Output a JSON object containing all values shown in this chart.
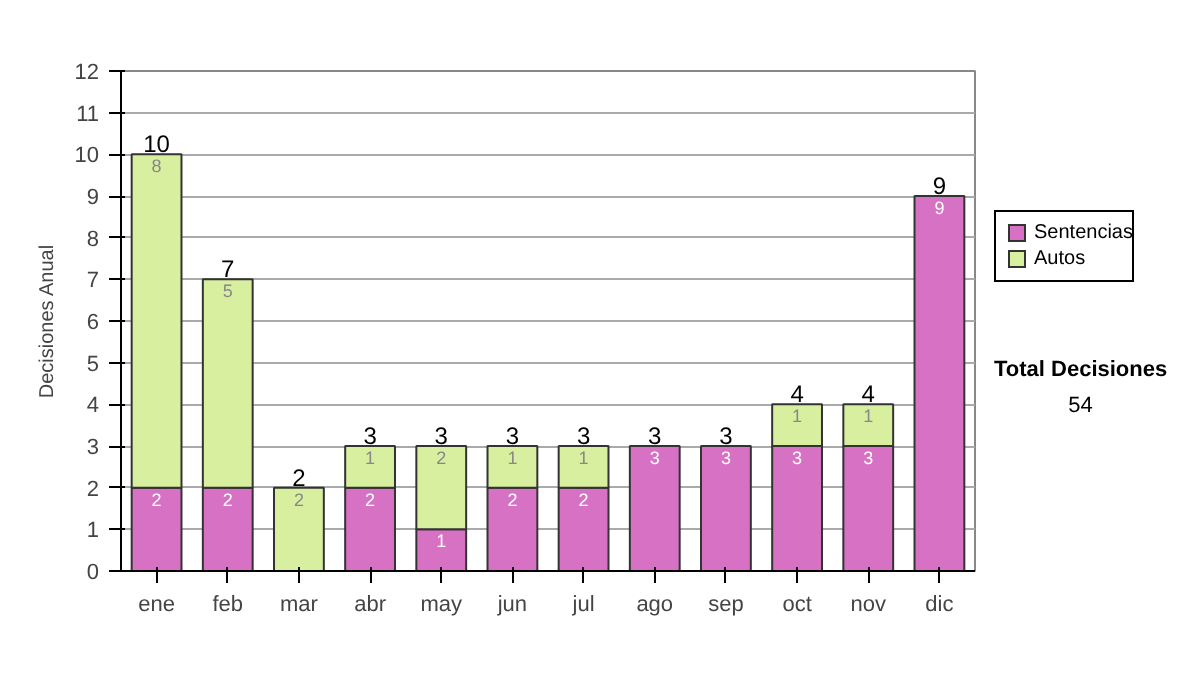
{
  "chart_data": {
    "type": "bar",
    "stacked": true,
    "ylabel": "Decisiones Anual",
    "categories": [
      "ene",
      "feb",
      "mar",
      "abr",
      "may",
      "jun",
      "jul",
      "ago",
      "sep",
      "oct",
      "nov",
      "dic"
    ],
    "series": [
      {
        "name": "Sentencias",
        "color": "#d771c4",
        "values": [
          2,
          2,
          0,
          2,
          1,
          2,
          2,
          3,
          3,
          3,
          3,
          9
        ],
        "value_labels": [
          "2",
          "2",
          null,
          "2",
          "1",
          "2",
          "2",
          "3",
          "3",
          "3",
          "3",
          "9"
        ]
      },
      {
        "name": "Autos",
        "color": "#d7ef9f",
        "values": [
          8,
          5,
          2,
          1,
          2,
          1,
          1,
          0,
          0,
          1,
          1,
          0
        ],
        "value_labels": [
          "8",
          "5",
          "2",
          "1",
          "2",
          "1",
          "1",
          null,
          null,
          "1",
          "1",
          null
        ]
      }
    ],
    "totals": [
      "10",
      "7",
      "2",
      "3",
      "3",
      "3",
      "3",
      "3",
      "3",
      "4",
      "4",
      "9"
    ],
    "ylim": [
      0,
      12
    ],
    "yticks": [
      0,
      1,
      2,
      3,
      4,
      5,
      6,
      7,
      8,
      9,
      10,
      11,
      12
    ],
    "grid": "y",
    "legend": "right",
    "annotations": [
      "Total Decisiones",
      "54"
    ]
  }
}
